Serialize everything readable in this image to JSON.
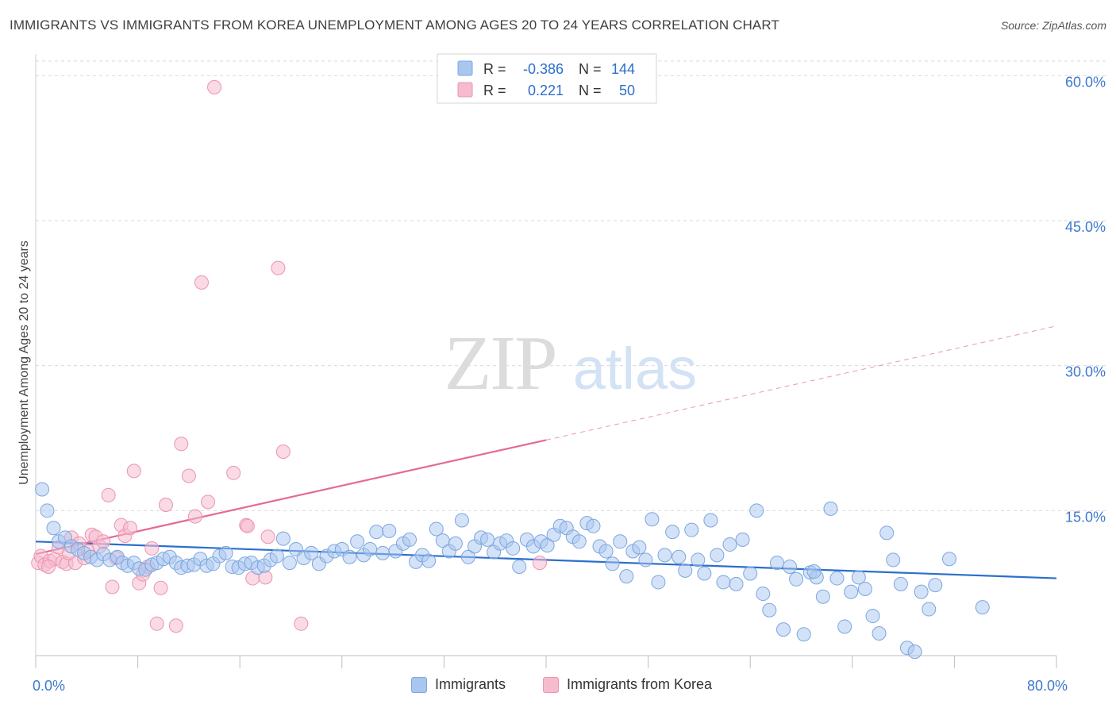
{
  "title": "IMMIGRANTS VS IMMIGRANTS FROM KOREA UNEMPLOYMENT AMONG AGES 20 TO 24 YEARS CORRELATION CHART",
  "source": "Source: ZipAtlas.com",
  "watermark": {
    "zip": "ZIP",
    "atlas": "atlas"
  },
  "colors": {
    "blue_fill": "#a9c6ef",
    "blue_stroke": "#7aa7e0",
    "blue_line": "#2c6fcc",
    "pink_fill": "#f6bccd",
    "pink_stroke": "#ec94b0",
    "pink_line": "#e46a96",
    "tick_label": "#3d78d0",
    "grid": "#d9d9d9"
  },
  "stats_box": {
    "rows": [
      {
        "r_label": "R =",
        "r_value": "-0.386",
        "n_label": "N =",
        "n_value": "144",
        "series": "blue"
      },
      {
        "r_label": "R =",
        "r_value": "0.221",
        "n_label": "N =",
        "n_value": "50",
        "series": "pink"
      }
    ]
  },
  "legend": {
    "immigrants": "Immigrants",
    "korea": "Immigrants from Korea"
  },
  "chart_data": {
    "type": "scatter",
    "title": "IMMIGRANTS VS IMMIGRANTS FROM KOREA UNEMPLOYMENT AMONG AGES 20 TO 24 YEARS CORRELATION CHART",
    "xlabel": "",
    "ylabel": "Unemployment Among Ages 20 to 24 years",
    "xlim": [
      0,
      80
    ],
    "ylim": [
      0,
      61.5
    ],
    "x_tick_labels": [
      {
        "value": 0,
        "label": "0.0%"
      },
      {
        "value": 80,
        "label": "80.0%"
      }
    ],
    "y_ticks": [
      {
        "value": 15,
        "label": "15.0%"
      },
      {
        "value": 30,
        "label": "30.0%"
      },
      {
        "value": 45,
        "label": "45.0%"
      },
      {
        "value": 60,
        "label": "60.0%"
      }
    ],
    "x_minor_ticks": [
      0,
      8,
      16,
      24,
      32,
      40,
      48,
      56,
      64,
      72,
      80
    ],
    "grid": true,
    "legend_position": "bottom",
    "series": [
      {
        "name": "Immigrants",
        "color": "#7aa7e0",
        "R": -0.386,
        "N": 144,
        "trend": {
          "x0": 0,
          "y0": 11.8,
          "x1": 80,
          "y1": 8.0,
          "style": "solid"
        },
        "points": [
          [
            0.5,
            17.2
          ],
          [
            0.9,
            15.0
          ],
          [
            1.4,
            13.2
          ],
          [
            1.8,
            11.8
          ],
          [
            2.3,
            12.2
          ],
          [
            2.8,
            11.3
          ],
          [
            3.3,
            11.0
          ],
          [
            3.8,
            10.6
          ],
          [
            4.3,
            10.2
          ],
          [
            4.8,
            9.9
          ],
          [
            5.3,
            10.5
          ],
          [
            5.8,
            9.9
          ],
          [
            6.4,
            10.2
          ],
          [
            6.8,
            9.6
          ],
          [
            7.2,
            9.3
          ],
          [
            7.7,
            9.6
          ],
          [
            8.1,
            9.0
          ],
          [
            8.6,
            8.9
          ],
          [
            9.1,
            9.4
          ],
          [
            9.5,
            9.6
          ],
          [
            10.0,
            10.0
          ],
          [
            10.5,
            10.2
          ],
          [
            11.0,
            9.6
          ],
          [
            11.4,
            9.1
          ],
          [
            11.9,
            9.3
          ],
          [
            12.4,
            9.4
          ],
          [
            12.9,
            10.0
          ],
          [
            13.4,
            9.3
          ],
          [
            13.9,
            9.5
          ],
          [
            14.4,
            10.3
          ],
          [
            14.9,
            10.6
          ],
          [
            15.4,
            9.2
          ],
          [
            15.9,
            9.1
          ],
          [
            16.4,
            9.5
          ],
          [
            16.9,
            9.6
          ],
          [
            17.4,
            9.1
          ],
          [
            17.9,
            9.3
          ],
          [
            18.4,
            9.9
          ],
          [
            18.9,
            10.3
          ],
          [
            19.4,
            12.1
          ],
          [
            19.9,
            9.6
          ],
          [
            20.4,
            11.0
          ],
          [
            21.0,
            10.1
          ],
          [
            21.6,
            10.6
          ],
          [
            22.2,
            9.5
          ],
          [
            22.8,
            10.3
          ],
          [
            23.4,
            10.8
          ],
          [
            24.0,
            11.0
          ],
          [
            24.6,
            10.2
          ],
          [
            25.2,
            11.8
          ],
          [
            25.7,
            10.4
          ],
          [
            26.2,
            11.0
          ],
          [
            26.7,
            12.8
          ],
          [
            27.2,
            10.6
          ],
          [
            27.7,
            12.9
          ],
          [
            28.2,
            10.8
          ],
          [
            28.8,
            11.6
          ],
          [
            29.3,
            12.0
          ],
          [
            29.8,
            9.7
          ],
          [
            30.3,
            10.4
          ],
          [
            30.8,
            9.8
          ],
          [
            31.4,
            13.1
          ],
          [
            31.9,
            11.9
          ],
          [
            32.4,
            10.8
          ],
          [
            32.9,
            11.6
          ],
          [
            33.4,
            14.0
          ],
          [
            33.9,
            10.2
          ],
          [
            34.4,
            11.3
          ],
          [
            34.9,
            12.2
          ],
          [
            35.4,
            12.0
          ],
          [
            35.9,
            10.7
          ],
          [
            36.4,
            11.6
          ],
          [
            36.9,
            11.9
          ],
          [
            37.4,
            11.1
          ],
          [
            37.9,
            9.2
          ],
          [
            38.5,
            12.0
          ],
          [
            39.0,
            11.3
          ],
          [
            39.6,
            11.8
          ],
          [
            40.1,
            11.4
          ],
          [
            40.6,
            12.5
          ],
          [
            41.1,
            13.4
          ],
          [
            41.6,
            13.2
          ],
          [
            42.1,
            12.3
          ],
          [
            42.6,
            11.8
          ],
          [
            43.2,
            13.7
          ],
          [
            43.7,
            13.4
          ],
          [
            44.2,
            11.3
          ],
          [
            44.7,
            10.8
          ],
          [
            45.2,
            9.5
          ],
          [
            45.8,
            11.8
          ],
          [
            46.3,
            8.2
          ],
          [
            46.8,
            10.8
          ],
          [
            47.3,
            11.2
          ],
          [
            47.8,
            9.9
          ],
          [
            48.3,
            14.1
          ],
          [
            48.8,
            7.6
          ],
          [
            49.3,
            10.4
          ],
          [
            49.9,
            12.8
          ],
          [
            50.4,
            10.2
          ],
          [
            50.9,
            8.8
          ],
          [
            51.4,
            13.0
          ],
          [
            51.9,
            9.9
          ],
          [
            52.4,
            8.5
          ],
          [
            52.9,
            14.0
          ],
          [
            53.4,
            10.4
          ],
          [
            53.9,
            7.6
          ],
          [
            54.4,
            11.5
          ],
          [
            54.9,
            7.4
          ],
          [
            55.4,
            12.0
          ],
          [
            56.0,
            8.5
          ],
          [
            56.5,
            15.0
          ],
          [
            57.0,
            6.4
          ],
          [
            57.5,
            4.7
          ],
          [
            58.1,
            9.6
          ],
          [
            58.6,
            2.7
          ],
          [
            59.1,
            9.2
          ],
          [
            59.6,
            7.9
          ],
          [
            60.2,
            2.2
          ],
          [
            60.7,
            8.6
          ],
          [
            61.2,
            8.1
          ],
          [
            61.7,
            6.1
          ],
          [
            62.3,
            15.2
          ],
          [
            62.8,
            8.0
          ],
          [
            63.4,
            3.0
          ],
          [
            63.9,
            6.6
          ],
          [
            64.5,
            8.1
          ],
          [
            65.0,
            6.9
          ],
          [
            65.6,
            4.1
          ],
          [
            66.1,
            2.3
          ],
          [
            66.7,
            12.7
          ],
          [
            67.2,
            9.9
          ],
          [
            67.8,
            7.4
          ],
          [
            68.3,
            0.8
          ],
          [
            68.9,
            0.4
          ],
          [
            69.4,
            6.6
          ],
          [
            70.0,
            4.8
          ],
          [
            70.5,
            7.3
          ],
          [
            71.6,
            10.0
          ],
          [
            74.2,
            5.0
          ],
          [
            61.0,
            8.7
          ]
        ]
      },
      {
        "name": "Immigrants from Korea",
        "color": "#ec94b0",
        "R": 0.221,
        "N": 50,
        "trend": {
          "x0": 0,
          "y0": 10.5,
          "x1": 40,
          "y1": 22.3,
          "x_ext": 80,
          "y_ext": 34.1,
          "style": "solid_then_dashed"
        },
        "points": [
          [
            0.2,
            9.6
          ],
          [
            0.4,
            10.3
          ],
          [
            0.7,
            9.4
          ],
          [
            1.1,
            9.8
          ],
          [
            1.5,
            10.0
          ],
          [
            1.8,
            11.2
          ],
          [
            2.1,
            9.7
          ],
          [
            2.4,
            9.5
          ],
          [
            2.8,
            12.2
          ],
          [
            3.1,
            9.6
          ],
          [
            3.4,
            11.6
          ],
          [
            3.8,
            10.1
          ],
          [
            4.1,
            10.8
          ],
          [
            4.4,
            12.5
          ],
          [
            4.7,
            12.3
          ],
          [
            5.0,
            11.3
          ],
          [
            5.3,
            11.8
          ],
          [
            5.7,
            16.6
          ],
          [
            6.0,
            7.1
          ],
          [
            6.3,
            10.1
          ],
          [
            6.7,
            13.5
          ],
          [
            7.0,
            12.4
          ],
          [
            7.4,
            13.2
          ],
          [
            7.7,
            19.1
          ],
          [
            8.1,
            7.5
          ],
          [
            8.4,
            8.4
          ],
          [
            8.8,
            9.2
          ],
          [
            9.1,
            11.1
          ],
          [
            9.5,
            3.3
          ],
          [
            9.8,
            7.0
          ],
          [
            10.2,
            15.6
          ],
          [
            11.0,
            3.1
          ],
          [
            11.4,
            21.9
          ],
          [
            12.0,
            18.6
          ],
          [
            12.5,
            14.4
          ],
          [
            13.0,
            38.6
          ],
          [
            13.5,
            15.9
          ],
          [
            14.0,
            58.8
          ],
          [
            15.5,
            18.9
          ],
          [
            16.5,
            13.5
          ],
          [
            17.0,
            8.0
          ],
          [
            18.2,
            12.3
          ],
          [
            19.0,
            40.1
          ],
          [
            19.4,
            21.1
          ],
          [
            20.8,
            3.3
          ],
          [
            39.5,
            9.6
          ],
          [
            16.6,
            13.4
          ],
          [
            18.0,
            8.1
          ],
          [
            2.6,
            10.6
          ],
          [
            1.0,
            9.2
          ]
        ]
      }
    ]
  }
}
